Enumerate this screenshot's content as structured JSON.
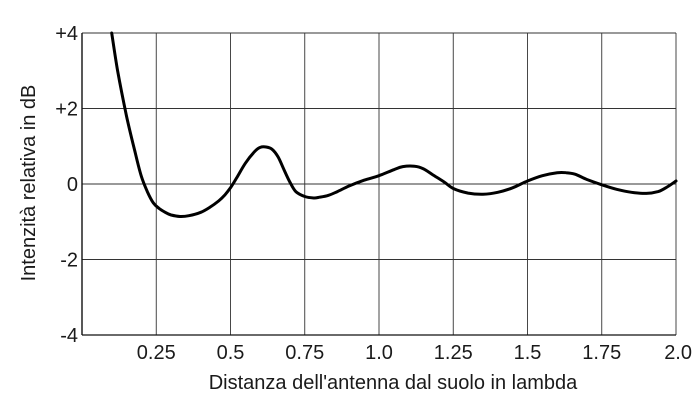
{
  "chart_data": {
    "type": "line",
    "xlabel": "Distanza dell'antenna dal suolo in lambda",
    "ylabel": "Intenzità relativa in dB",
    "xlim": [
      0,
      2.0
    ],
    "ylim": [
      -4,
      4
    ],
    "x_ticks": [
      0.25,
      0.5,
      0.75,
      1.0,
      1.25,
      1.5,
      1.75,
      2.0
    ],
    "x_tick_labels": [
      "0.25",
      "0.5",
      "0.75",
      "1.0",
      "1.25",
      "1.5",
      "1.75",
      "2.0"
    ],
    "y_ticks": [
      4,
      2,
      0,
      -2,
      -4
    ],
    "y_tick_labels": [
      "+4",
      "+2",
      "0",
      "-2",
      "-4"
    ],
    "grid": true,
    "series": [
      {
        "x": [
          0.1,
          0.12,
          0.15,
          0.18,
          0.2,
          0.22,
          0.24,
          0.26,
          0.28,
          0.3,
          0.33,
          0.36,
          0.4,
          0.43,
          0.46,
          0.48,
          0.5,
          0.52,
          0.55,
          0.58,
          0.6,
          0.62,
          0.64,
          0.66,
          0.68,
          0.7,
          0.72,
          0.75,
          0.78,
          0.8,
          0.83,
          0.86,
          0.9,
          0.95,
          1.0,
          1.05,
          1.08,
          1.12,
          1.15,
          1.18,
          1.22,
          1.25,
          1.3,
          1.35,
          1.4,
          1.45,
          1.5,
          1.55,
          1.6,
          1.63,
          1.66,
          1.7,
          1.75,
          1.8,
          1.85,
          1.9,
          1.94,
          1.97,
          2.0
        ],
        "y": [
          4.0,
          3.0,
          1.8,
          0.8,
          0.2,
          -0.2,
          -0.5,
          -0.65,
          -0.75,
          -0.82,
          -0.86,
          -0.84,
          -0.75,
          -0.62,
          -0.45,
          -0.3,
          -0.1,
          0.15,
          0.55,
          0.85,
          0.97,
          0.98,
          0.92,
          0.72,
          0.38,
          0.05,
          -0.2,
          -0.33,
          -0.37,
          -0.35,
          -0.3,
          -0.2,
          -0.05,
          0.1,
          0.22,
          0.38,
          0.46,
          0.47,
          0.4,
          0.25,
          0.05,
          -0.12,
          -0.24,
          -0.27,
          -0.22,
          -0.1,
          0.08,
          0.22,
          0.3,
          0.3,
          0.26,
          0.12,
          -0.02,
          -0.14,
          -0.22,
          -0.25,
          -0.2,
          -0.08,
          0.08
        ]
      }
    ]
  }
}
